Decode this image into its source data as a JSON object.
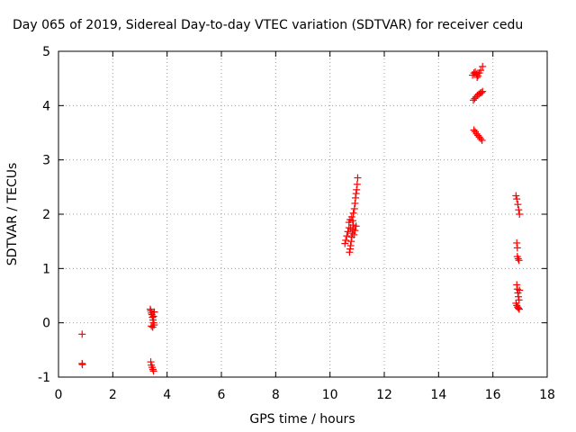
{
  "chart_data": {
    "type": "scatter",
    "title": "Day 065 of 2019, Sidereal Day-to-day VTEC variation (SDTVAR) for receiver cedu",
    "xlabel": "GPS time / hours",
    "ylabel": "SDTVAR / TECUs",
    "xlim": [
      0,
      18
    ],
    "ylim": [
      -1,
      5
    ],
    "xticks": [
      0,
      2,
      4,
      6,
      8,
      10,
      12,
      14,
      16,
      18
    ],
    "yticks": [
      -1,
      0,
      1,
      2,
      3,
      4,
      5
    ],
    "xtick_labels": [
      "0",
      "2",
      "4",
      "6",
      "8",
      "10",
      "12",
      "14",
      "16",
      "18"
    ],
    "ytick_labels": [
      "-1",
      "0",
      "1",
      "2",
      "3",
      "4",
      "5"
    ],
    "grid": true,
    "marker": "plus",
    "series": [
      {
        "name": "SDTVAR",
        "color": "#ff0000",
        "points": [
          [
            0.87,
            -0.21
          ],
          [
            0.87,
            -0.75
          ],
          [
            0.88,
            -0.77
          ],
          [
            3.38,
            0.25
          ],
          [
            3.4,
            0.22
          ],
          [
            3.42,
            0.18
          ],
          [
            3.44,
            0.15
          ],
          [
            3.46,
            0.1
          ],
          [
            3.48,
            0.05
          ],
          [
            3.5,
            0.0
          ],
          [
            3.52,
            -0.04
          ],
          [
            3.42,
            -0.06
          ],
          [
            3.47,
            -0.08
          ],
          [
            3.5,
            0.12
          ],
          [
            3.53,
            0.2
          ],
          [
            3.4,
            -0.72
          ],
          [
            3.42,
            -0.78
          ],
          [
            3.45,
            -0.82
          ],
          [
            3.48,
            -0.86
          ],
          [
            3.5,
            -0.89
          ],
          [
            10.55,
            1.46
          ],
          [
            10.58,
            1.52
          ],
          [
            10.62,
            1.6
          ],
          [
            10.66,
            1.68
          ],
          [
            10.7,
            1.75
          ],
          [
            10.72,
            1.3
          ],
          [
            10.74,
            1.36
          ],
          [
            10.76,
            1.42
          ],
          [
            10.78,
            1.5
          ],
          [
            10.8,
            1.58
          ],
          [
            10.82,
            1.65
          ],
          [
            10.84,
            1.72
          ],
          [
            10.86,
            1.8
          ],
          [
            10.7,
            1.85
          ],
          [
            10.74,
            1.9
          ],
          [
            10.8,
            1.95
          ],
          [
            10.86,
            2.02
          ],
          [
            10.9,
            2.1
          ],
          [
            10.92,
            2.2
          ],
          [
            10.94,
            2.3
          ],
          [
            10.96,
            2.38
          ],
          [
            10.98,
            2.45
          ],
          [
            11.0,
            2.55
          ],
          [
            11.02,
            2.67
          ],
          [
            10.88,
            1.62
          ],
          [
            10.92,
            1.7
          ],
          [
            10.96,
            1.78
          ],
          [
            10.76,
            1.75
          ],
          [
            10.84,
            1.88
          ],
          [
            15.25,
            4.56
          ],
          [
            15.3,
            4.6
          ],
          [
            15.35,
            4.62
          ],
          [
            15.4,
            4.58
          ],
          [
            15.45,
            4.55
          ],
          [
            15.5,
            4.6
          ],
          [
            15.55,
            4.65
          ],
          [
            15.62,
            4.72
          ],
          [
            15.42,
            4.52
          ],
          [
            15.28,
            4.1
          ],
          [
            15.33,
            4.13
          ],
          [
            15.38,
            4.16
          ],
          [
            15.43,
            4.19
          ],
          [
            15.48,
            4.21
          ],
          [
            15.53,
            4.23
          ],
          [
            15.58,
            4.24
          ],
          [
            15.62,
            4.26
          ],
          [
            15.3,
            3.55
          ],
          [
            15.35,
            3.52
          ],
          [
            15.4,
            3.48
          ],
          [
            15.45,
            3.45
          ],
          [
            15.5,
            3.42
          ],
          [
            15.55,
            3.39
          ],
          [
            15.6,
            3.36
          ],
          [
            16.85,
            2.34
          ],
          [
            16.88,
            2.28
          ],
          [
            16.92,
            2.18
          ],
          [
            16.95,
            2.08
          ],
          [
            16.98,
            2.0
          ],
          [
            16.88,
            1.47
          ],
          [
            16.9,
            1.38
          ],
          [
            16.9,
            1.22
          ],
          [
            16.93,
            1.18
          ],
          [
            16.96,
            1.15
          ],
          [
            16.88,
            0.7
          ],
          [
            16.9,
            0.62
          ],
          [
            16.92,
            0.55
          ],
          [
            16.94,
            0.48
          ],
          [
            16.96,
            0.42
          ],
          [
            16.85,
            0.36
          ],
          [
            16.88,
            0.32
          ],
          [
            16.91,
            0.29
          ],
          [
            16.94,
            0.27
          ],
          [
            16.97,
            0.25
          ],
          [
            16.98,
            0.6
          ]
        ]
      }
    ]
  }
}
